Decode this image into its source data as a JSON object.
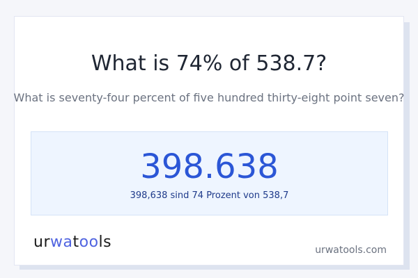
{
  "title": "What is 74% of 538.7?",
  "subtitle": "What is seventy-four percent of five hundred thirty-eight point seven?",
  "result": {
    "value": "398.638",
    "sentence": "398,638 sind 74 Prozent von 538,7"
  },
  "logo": {
    "part1": "ur",
    "part2": "wa",
    "part3": "t",
    "part4": "oo",
    "part5": "ls",
    "accent_color": "#4f63e0"
  },
  "site": "urwatools.com"
}
